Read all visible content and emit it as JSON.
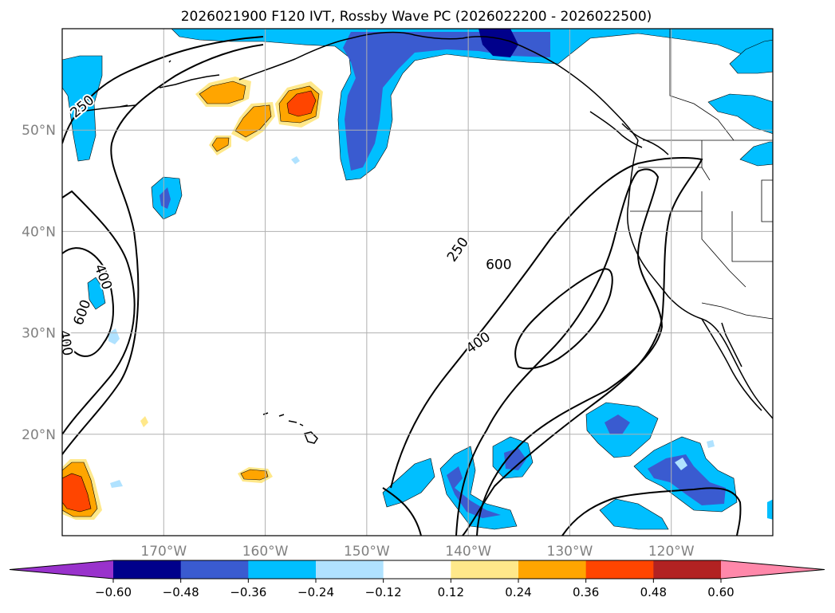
{
  "title": "2026021900 F120 IVT, Rossby Wave PC (2026022200 - 2026022500)",
  "map": {
    "lon_range": [
      -180,
      -110
    ],
    "lat_range": [
      10,
      60
    ],
    "lon_ticks": [
      {
        "value": -170,
        "label": "170°W"
      },
      {
        "value": -160,
        "label": "160°W"
      },
      {
        "value": -150,
        "label": "150°W"
      },
      {
        "value": -140,
        "label": "140°W"
      },
      {
        "value": -130,
        "label": "130°W"
      },
      {
        "value": -120,
        "label": "120°W"
      }
    ],
    "lat_ticks": [
      {
        "value": 20,
        "label": "20°N"
      },
      {
        "value": 30,
        "label": "30°N"
      },
      {
        "value": 40,
        "label": "40°N"
      },
      {
        "value": 50,
        "label": "50°N"
      }
    ],
    "grid": true,
    "tick_label_color": "#808080"
  },
  "contour_labels": [
    {
      "text": "250",
      "lon": -178,
      "lat": 52.3,
      "rotation": -40
    },
    {
      "text": "400",
      "lon": -176,
      "lat": 35.5,
      "rotation": 70
    },
    {
      "text": "600",
      "lon": -178,
      "lat": 32.0,
      "rotation": -70
    },
    {
      "text": "400",
      "lon": -179.7,
      "lat": 29.0,
      "rotation": 80
    },
    {
      "text": "250",
      "lon": -141.0,
      "lat": 38.2,
      "rotation": -55
    },
    {
      "text": "600",
      "lon": -137.0,
      "lat": 36.7,
      "rotation": 0
    },
    {
      "text": "400",
      "lon": -139.0,
      "lat": 29.0,
      "rotation": -35
    }
  ],
  "colorbar": {
    "colors": [
      "#9932cc",
      "#00008b",
      "#3a5bd0",
      "#00bfff",
      "#b0e2ff",
      "#ffffff",
      "#ffe88a",
      "#ffa500",
      "#ff4500",
      "#b22222",
      "#ff88aa"
    ],
    "tick_labels": [
      "−0.60",
      "−0.48",
      "−0.36",
      "−0.24",
      "−0.12",
      "0.12",
      "0.24",
      "0.36",
      "0.48",
      "0.60"
    ]
  }
}
